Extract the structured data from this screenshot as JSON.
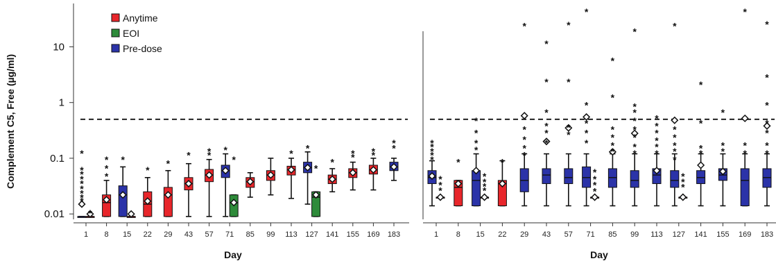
{
  "chart_data": {
    "type": "box",
    "ylabel": "Complement C5, Free (µg/ml)",
    "xlabel": "Day",
    "yscale": "log",
    "ylim": [
      0.008,
      60
    ],
    "yticks": [
      0.01,
      0.1,
      1,
      10
    ],
    "ytick_labels": [
      "0.01",
      "0.1",
      "1",
      "10"
    ],
    "reference_line": 0.5,
    "legend": {
      "position": "top-left",
      "entries": [
        {
          "name": "Anytime",
          "color": "#e8262b"
        },
        {
          "name": "EOI",
          "color": "#2e8b3a"
        },
        {
          "name": "Pre-dose",
          "color": "#2b33a8"
        }
      ]
    },
    "categories": [
      "1",
      "8",
      "15",
      "22",
      "29",
      "43",
      "57",
      "71",
      "85",
      "99",
      "113",
      "127",
      "141",
      "155",
      "169",
      "183"
    ],
    "panels": [
      {
        "boxes": [
          {
            "day": "1",
            "group": "Pre-dose",
            "q1": 0.009,
            "median": 0.009,
            "q3": 0.009,
            "wmin": 0.009,
            "wmax": 0.009,
            "mean": 0.015,
            "outliers": [
              0.13,
              0.065,
              0.055,
              0.045,
              0.037,
              0.03,
              0.025,
              0.021,
              0.018
            ]
          },
          {
            "day": "1",
            "group": "Anytime",
            "q1": 0.009,
            "median": 0.009,
            "q3": 0.009,
            "wmin": 0.009,
            "wmax": 0.009,
            "mean": 0.01,
            "outliers": [
              0.011
            ]
          },
          {
            "day": "8",
            "group": "Anytime",
            "q1": 0.009,
            "median": 0.016,
            "q3": 0.022,
            "wmin": 0.009,
            "wmax": 0.04,
            "mean": 0.018,
            "outliers": [
              0.1,
              0.07,
              0.05
            ]
          },
          {
            "day": "15",
            "group": "Pre-dose",
            "q1": 0.009,
            "median": 0.022,
            "q3": 0.032,
            "wmin": 0.009,
            "wmax": 0.07,
            "mean": 0.022,
            "outliers": [
              0.1
            ]
          },
          {
            "day": "15",
            "group": "Anytime",
            "q1": 0.009,
            "median": 0.009,
            "q3": 0.009,
            "wmin": 0.009,
            "wmax": 0.009,
            "mean": 0.01,
            "outliers": []
          },
          {
            "day": "22",
            "group": "Anytime",
            "q1": 0.009,
            "median": 0.015,
            "q3": 0.025,
            "wmin": 0.009,
            "wmax": 0.045,
            "mean": 0.017,
            "outliers": [
              0.065
            ]
          },
          {
            "day": "29",
            "group": "Anytime",
            "q1": 0.009,
            "median": 0.022,
            "q3": 0.03,
            "wmin": 0.009,
            "wmax": 0.06,
            "mean": 0.022,
            "outliers": [
              0.085
            ]
          },
          {
            "day": "43",
            "group": "Anytime",
            "q1": 0.027,
            "median": 0.035,
            "q3": 0.045,
            "wmin": 0.009,
            "wmax": 0.08,
            "mean": 0.035,
            "outliers": [
              0.12
            ]
          },
          {
            "day": "57",
            "group": "Anytime",
            "q1": 0.038,
            "median": 0.05,
            "q3": 0.063,
            "wmin": 0.009,
            "wmax": 0.095,
            "mean": 0.05,
            "outliers": [
              0.14,
              0.12
            ]
          },
          {
            "day": "71",
            "group": "Pre-dose",
            "q1": 0.045,
            "median": 0.06,
            "q3": 0.075,
            "wmin": 0.009,
            "wmax": 0.12,
            "mean": 0.06,
            "outliers": [
              0.15
            ]
          },
          {
            "day": "71",
            "group": "EOI",
            "q1": 0.009,
            "median": 0.016,
            "q3": 0.022,
            "wmin": 0.009,
            "wmax": 0.022,
            "mean": 0.016,
            "outliers": [
              0.1
            ]
          },
          {
            "day": "85",
            "group": "Anytime",
            "q1": 0.03,
            "median": 0.038,
            "q3": 0.045,
            "wmin": 0.02,
            "wmax": 0.055,
            "mean": 0.038,
            "outliers": []
          },
          {
            "day": "99",
            "group": "Anytime",
            "q1": 0.04,
            "median": 0.05,
            "q3": 0.06,
            "wmin": 0.022,
            "wmax": 0.1,
            "mean": 0.05,
            "outliers": []
          },
          {
            "day": "113",
            "group": "Anytime",
            "q1": 0.05,
            "median": 0.062,
            "q3": 0.072,
            "wmin": 0.019,
            "wmax": 0.1,
            "mean": 0.062,
            "outliers": [
              0.13
            ]
          },
          {
            "day": "127",
            "group": "Pre-dose",
            "q1": 0.055,
            "median": 0.068,
            "q3": 0.085,
            "wmin": 0.015,
            "wmax": 0.13,
            "mean": 0.068,
            "outliers": [
              0.16
            ]
          },
          {
            "day": "127",
            "group": "EOI",
            "q1": 0.009,
            "median": 0.02,
            "q3": 0.025,
            "wmin": 0.009,
            "wmax": 0.025,
            "mean": 0.022,
            "outliers": [
              0.07
            ]
          },
          {
            "day": "141",
            "group": "Anytime",
            "q1": 0.035,
            "median": 0.042,
            "q3": 0.05,
            "wmin": 0.025,
            "wmax": 0.065,
            "mean": 0.042,
            "outliers": [
              0.09
            ]
          },
          {
            "day": "155",
            "group": "Anytime",
            "q1": 0.045,
            "median": 0.055,
            "q3": 0.065,
            "wmin": 0.027,
            "wmax": 0.085,
            "mean": 0.055,
            "outliers": [
              0.13,
              0.11
            ]
          },
          {
            "day": "169",
            "group": "Anytime",
            "q1": 0.052,
            "median": 0.062,
            "q3": 0.075,
            "wmin": 0.027,
            "wmax": 0.1,
            "mean": 0.062,
            "outliers": [
              0.14,
              0.12
            ]
          },
          {
            "day": "183",
            "group": "Pre-dose",
            "q1": 0.06,
            "median": 0.07,
            "q3": 0.085,
            "wmin": 0.04,
            "wmax": 0.1,
            "mean": 0.07,
            "outliers": [
              0.2,
              0.16
            ]
          }
        ]
      },
      {
        "boxes": [
          {
            "day": "1",
            "group": "Pre-dose",
            "q1": 0.035,
            "median": 0.045,
            "q3": 0.06,
            "wmin": 0.014,
            "wmax": 0.09,
            "mean": 0.048,
            "outliers": [
              0.2,
              0.17,
              0.14,
              0.12,
              0.1
            ]
          },
          {
            "day": "1",
            "group": "Anytime",
            "q1": 0.02,
            "median": 0.02,
            "q3": 0.02,
            "wmin": 0.02,
            "wmax": 0.02,
            "mean": 0.02,
            "outliers": [
              0.045,
              0.035,
              0.028
            ]
          },
          {
            "day": "8",
            "group": "Anytime",
            "q1": 0.014,
            "median": 0.03,
            "q3": 0.04,
            "wmin": 0.014,
            "wmax": 0.04,
            "mean": 0.035,
            "outliers": [
              0.09
            ]
          },
          {
            "day": "15",
            "group": "Pre-dose",
            "q1": 0.014,
            "median": 0.04,
            "q3": 0.06,
            "wmin": 0.014,
            "wmax": 0.12,
            "mean": 0.06,
            "outliers": [
              0.5,
              0.3,
              0.2,
              0.15
            ]
          },
          {
            "day": "15",
            "group": "Anytime",
            "q1": 0.02,
            "median": 0.02,
            "q3": 0.02,
            "wmin": 0.02,
            "wmax": 0.02,
            "mean": 0.02,
            "outliers": [
              0.05,
              0.04,
              0.033,
              0.028
            ]
          },
          {
            "day": "22",
            "group": "Anytime",
            "q1": 0.014,
            "median": 0.035,
            "q3": 0.04,
            "wmin": 0.014,
            "wmax": 0.09,
            "mean": 0.035,
            "outliers": [
              0.09
            ]
          },
          {
            "day": "29",
            "group": "Pre-dose",
            "q1": 0.025,
            "median": 0.04,
            "q3": 0.065,
            "wmin": 0.014,
            "wmax": 0.12,
            "mean": 0.58,
            "outliers": [
              25,
              0.35,
              0.23,
              0.16,
              0.12
            ]
          },
          {
            "day": "43",
            "group": "Pre-dose",
            "q1": 0.035,
            "median": 0.05,
            "q3": 0.065,
            "wmin": 0.014,
            "wmax": 0.12,
            "mean": 0.2,
            "outliers": [
              12,
              2.5,
              0.7,
              0.4,
              0.3,
              0.2
            ]
          },
          {
            "day": "57",
            "group": "Pre-dose",
            "q1": 0.035,
            "median": 0.045,
            "q3": 0.065,
            "wmin": 0.014,
            "wmax": 0.12,
            "mean": 0.35,
            "outliers": [
              26,
              2.5,
              0.38,
              0.28
            ]
          },
          {
            "day": "71",
            "group": "Pre-dose",
            "q1": 0.03,
            "median": 0.045,
            "q3": 0.07,
            "wmin": 0.014,
            "wmax": 0.12,
            "mean": 0.55,
            "outliers": [
              45,
              0.95,
              0.45,
              0.3,
              0.2
            ]
          },
          {
            "day": "71",
            "group": "Anytime",
            "q1": 0.02,
            "median": 0.02,
            "q3": 0.02,
            "wmin": 0.02,
            "wmax": 0.02,
            "mean": 0.02,
            "outliers": [
              0.06,
              0.045,
              0.035,
              0.027
            ]
          },
          {
            "day": "85",
            "group": "Pre-dose",
            "q1": 0.03,
            "median": 0.045,
            "q3": 0.065,
            "wmin": 0.014,
            "wmax": 0.12,
            "mean": 0.13,
            "outliers": [
              6,
              1.3,
              0.35,
              0.25,
              0.18,
              0.14
            ]
          },
          {
            "day": "99",
            "group": "Pre-dose",
            "q1": 0.03,
            "median": 0.04,
            "q3": 0.06,
            "wmin": 0.014,
            "wmax": 0.12,
            "mean": 0.28,
            "outliers": [
              20,
              0.9,
              0.7,
              0.5,
              0.35,
              0.25,
              0.17,
              0.13
            ]
          },
          {
            "day": "113",
            "group": "Pre-dose",
            "q1": 0.035,
            "median": 0.05,
            "q3": 0.065,
            "wmin": 0.014,
            "wmax": 0.12,
            "mean": 0.06,
            "outliers": [
              0.55,
              0.4,
              0.3,
              0.22,
              0.17,
              0.13
            ]
          },
          {
            "day": "127",
            "group": "Pre-dose",
            "q1": 0.03,
            "median": 0.04,
            "q3": 0.06,
            "wmin": 0.014,
            "wmax": 0.12,
            "mean": 0.48,
            "outliers": [
              25,
              0.35,
              0.25,
              0.18,
              0.14,
              0.1
            ]
          },
          {
            "day": "127",
            "group": "Anytime",
            "q1": 0.02,
            "median": 0.02,
            "q3": 0.02,
            "wmin": 0.02,
            "wmax": 0.02,
            "mean": 0.02,
            "outliers": [
              0.05,
              0.04,
              0.032
            ]
          },
          {
            "day": "141",
            "group": "Pre-dose",
            "q1": 0.035,
            "median": 0.045,
            "q3": 0.06,
            "wmin": 0.014,
            "wmax": 0.12,
            "mean": 0.075,
            "outliers": [
              2.2,
              0.45,
              0.16,
              0.13
            ]
          },
          {
            "day": "155",
            "group": "Pre-dose",
            "q1": 0.04,
            "median": 0.05,
            "q3": 0.065,
            "wmin": 0.014,
            "wmax": 0.12,
            "mean": 0.058,
            "outliers": [
              0.7,
              0.18,
              0.14
            ]
          },
          {
            "day": "169",
            "group": "Pre-dose",
            "q1": 0.014,
            "median": 0.04,
            "q3": 0.065,
            "wmin": 0.014,
            "wmax": 0.12,
            "mean": 0.52,
            "outliers": [
              45,
              0.18,
              0.13
            ]
          },
          {
            "day": "183",
            "group": "Pre-dose",
            "q1": 0.03,
            "median": 0.045,
            "q3": 0.065,
            "wmin": 0.014,
            "wmax": 0.12,
            "mean": 0.38,
            "outliers": [
              27,
              3,
              0.95,
              0.45,
              0.3,
              0.18,
              0.13
            ]
          }
        ]
      }
    ]
  }
}
